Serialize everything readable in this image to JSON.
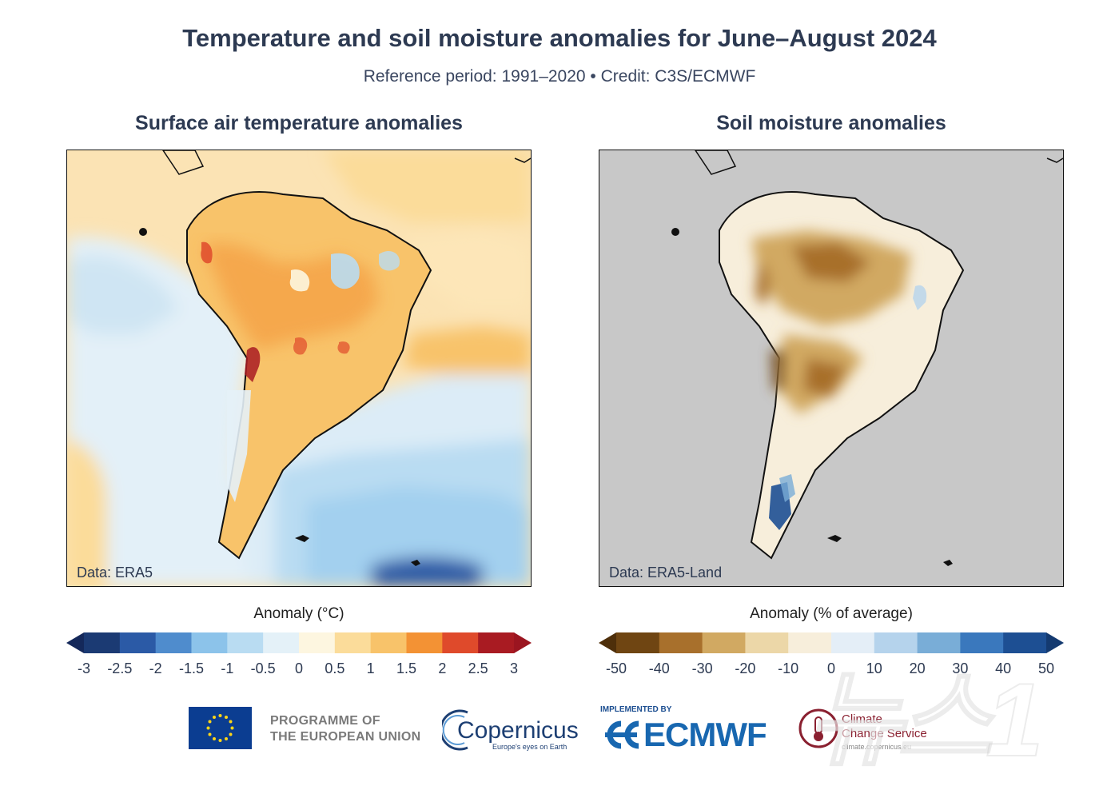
{
  "header": {
    "title": "Temperature and soil moisture anomalies for June–August 2024",
    "subtitle": "Reference period: 1991–2020 • Credit: C3S/ECMWF"
  },
  "panels": [
    {
      "title": "Surface air temperature anomalies",
      "data_label": "Data: ERA5",
      "colorbar": {
        "title": "Anomaly (°C)",
        "ticks": [
          "-3",
          "-2.5",
          "-2",
          "-1.5",
          "-1",
          "-0.5",
          "0",
          "0.5",
          "1",
          "1.5",
          "2",
          "2.5",
          "3"
        ],
        "colors": [
          "#1b3a73",
          "#2b5aa6",
          "#4f8ccd",
          "#8cc3ea",
          "#b9dcf2",
          "#e4f1f8",
          "#fdf6e0",
          "#fbdc9a",
          "#f8c36a",
          "#f39234",
          "#df4a2b",
          "#a91b22"
        ],
        "extend_low_color": "#14285a",
        "extend_high_color": "#9b1520"
      }
    },
    {
      "title": "Soil moisture anomalies",
      "data_label": "Data: ERA5-Land",
      "colorbar": {
        "title": "Anomaly (% of average)",
        "ticks": [
          "-50",
          "-40",
          "-30",
          "-20",
          "-10",
          "0",
          "10",
          "20",
          "30",
          "40",
          "50"
        ],
        "colors": [
          "#6f4512",
          "#a8702c",
          "#d1a962",
          "#ecd7a8",
          "#f7eedb",
          "#e4eef7",
          "#b5d3ec",
          "#79add7",
          "#3a78bd",
          "#1d4f93"
        ],
        "extend_low_color": "#4e2f0a",
        "extend_high_color": "#143a70"
      }
    }
  ],
  "logos": {
    "eu_line1": "PROGRAMME OF",
    "eu_line2": "THE EUROPEAN UNION",
    "copernicus": "Copernicus",
    "copernicus_tagline": "Europe's eyes on Earth",
    "ecmwf_implemented": "IMPLEMENTED BY",
    "ecmwf": "ECMWF",
    "ccs_line1": "Climate",
    "ccs_line2": "Change Service",
    "ccs_url": "climate.copernicus.eu"
  },
  "watermark": "뉴스1"
}
